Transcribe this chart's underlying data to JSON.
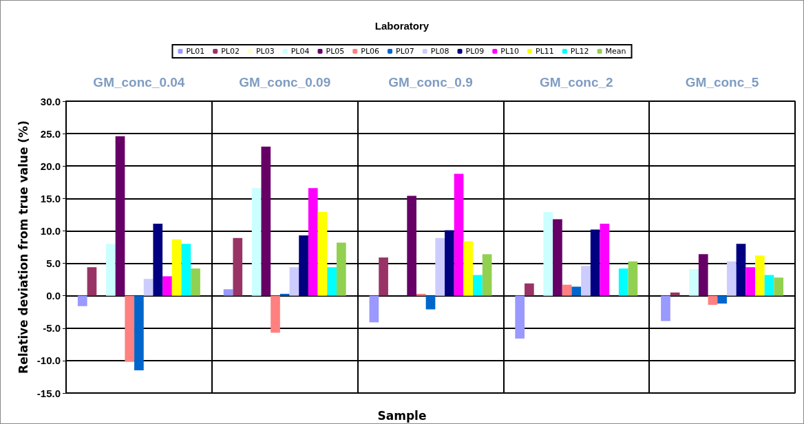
{
  "chart_data": {
    "type": "bar",
    "title": "Laboratory",
    "xlabel": "Sample",
    "ylabel": "Relative deviation from true value (%)",
    "categories": [
      "GM_conc_0.04",
      "GM_conc_0.09",
      "GM_conc_0.9",
      "GM_conc_2",
      "GM_conc_5"
    ],
    "series": [
      {
        "name": "PL01",
        "color": "#9999ff",
        "values": [
          -1.6,
          1.0,
          -4.1,
          -6.6,
          -3.9
        ]
      },
      {
        "name": "PL02",
        "color": "#993366",
        "values": [
          4.4,
          8.9,
          5.9,
          1.9,
          0.5
        ]
      },
      {
        "name": "PL03",
        "color": "#ffffcc",
        "values": [
          null,
          null,
          null,
          null,
          null
        ]
      },
      {
        "name": "PL04",
        "color": "#ccffff",
        "values": [
          8.0,
          16.6,
          null,
          12.9,
          4.1
        ]
      },
      {
        "name": "PL05",
        "color": "#660066",
        "values": [
          24.6,
          23.0,
          15.4,
          11.8,
          6.4
        ]
      },
      {
        "name": "PL06",
        "color": "#ff8080",
        "values": [
          -10.2,
          -5.7,
          0.3,
          1.7,
          -1.4
        ]
      },
      {
        "name": "PL07",
        "color": "#0066cc",
        "values": [
          -11.5,
          0.3,
          -2.1,
          1.4,
          -1.2
        ]
      },
      {
        "name": "PL08",
        "color": "#ccccff",
        "values": [
          2.6,
          4.4,
          8.9,
          4.6,
          5.3
        ]
      },
      {
        "name": "PL09",
        "color": "#000080",
        "values": [
          11.1,
          9.3,
          10.1,
          10.2,
          8.0
        ]
      },
      {
        "name": "PL10",
        "color": "#ff00ff",
        "values": [
          3.0,
          16.6,
          18.8,
          11.1,
          4.4
        ]
      },
      {
        "name": "PL11",
        "color": "#ffff00",
        "values": [
          8.7,
          12.9,
          8.4,
          null,
          6.2
        ]
      },
      {
        "name": "PL12",
        "color": "#00ffff",
        "values": [
          8.0,
          4.4,
          3.2,
          4.2,
          3.2
        ]
      },
      {
        "name": "Mean",
        "color": "#92d050",
        "values": [
          4.2,
          8.2,
          6.4,
          5.3,
          2.8
        ]
      }
    ],
    "ylim": [
      -15,
      30
    ],
    "yticks": [
      {
        "value": -15,
        "label": "-15.0"
      },
      {
        "value": -10,
        "label": "-10.0"
      },
      {
        "value": -5,
        "label": "-5.0"
      },
      {
        "value": 0,
        "label": "0.0"
      },
      {
        "value": 5,
        "label": "5.0"
      },
      {
        "value": 10,
        "label": "10.0"
      },
      {
        "value": 15,
        "label": "15.0"
      },
      {
        "value": 20,
        "label": "20.0"
      },
      {
        "value": 25,
        "label": "25.0"
      },
      {
        "value": 30,
        "label": "30.0"
      }
    ],
    "grid": true,
    "legend": "top"
  }
}
